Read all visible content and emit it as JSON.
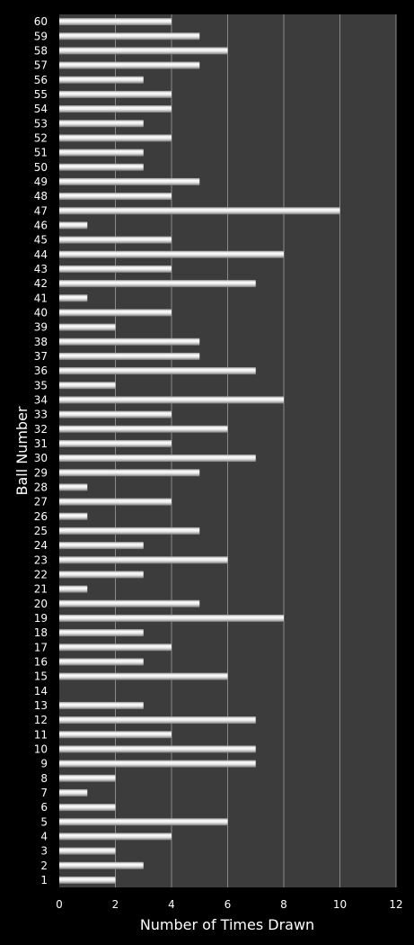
{
  "colors": {
    "background": "#000000",
    "plot_area": "#3c3c3c",
    "gridline": "#8a8a8a",
    "bar_light": "#ffffff",
    "bar_mid": "#d6d6d6",
    "bar_dark": "#7a7a7a",
    "text": "#ffffff"
  },
  "chart_data": {
    "type": "bar",
    "orientation": "horizontal",
    "xlabel": "Number of Times Drawn",
    "ylabel": "Ball Number",
    "xlim": [
      0,
      12
    ],
    "xticks": [
      0,
      2,
      4,
      6,
      8,
      10,
      12
    ],
    "grid": "vertical",
    "categories": [
      "1",
      "2",
      "3",
      "4",
      "5",
      "6",
      "7",
      "8",
      "9",
      "10",
      "11",
      "12",
      "13",
      "14",
      "15",
      "16",
      "17",
      "18",
      "19",
      "20",
      "21",
      "22",
      "23",
      "24",
      "25",
      "26",
      "27",
      "28",
      "29",
      "30",
      "31",
      "32",
      "33",
      "34",
      "35",
      "36",
      "37",
      "38",
      "39",
      "40",
      "41",
      "42",
      "43",
      "44",
      "45",
      "46",
      "47",
      "48",
      "49",
      "50",
      "51",
      "52",
      "53",
      "54",
      "55",
      "56",
      "57",
      "58",
      "59",
      "60"
    ],
    "values": [
      2,
      3,
      2,
      4,
      6,
      2,
      1,
      2,
      7,
      7,
      4,
      7,
      3,
      0,
      6,
      3,
      4,
      3,
      8,
      5,
      1,
      3,
      6,
      3,
      5,
      1,
      4,
      1,
      5,
      7,
      4,
      6,
      4,
      8,
      2,
      7,
      5,
      5,
      2,
      4,
      1,
      7,
      4,
      8,
      4,
      1,
      10,
      4,
      5,
      3,
      3,
      4,
      3,
      4,
      4,
      3,
      5,
      6,
      5,
      4
    ]
  }
}
